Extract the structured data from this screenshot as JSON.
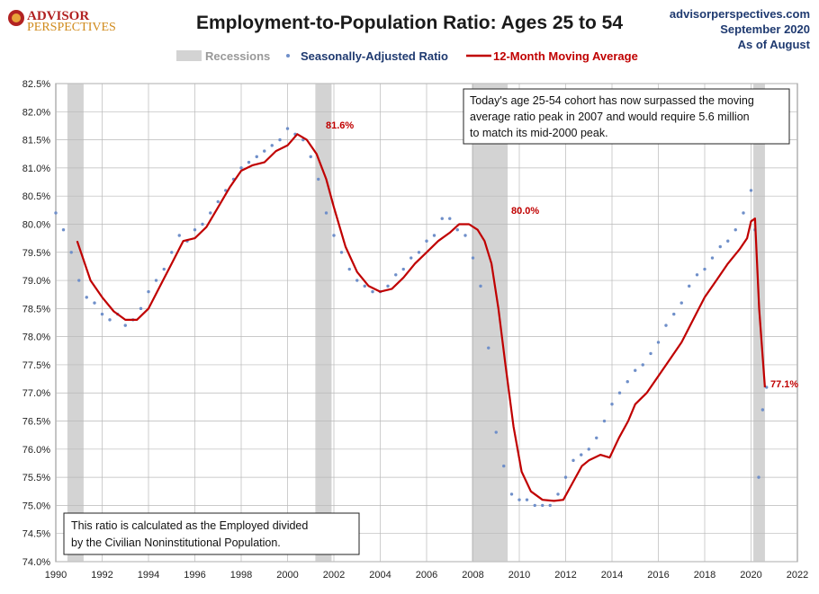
{
  "header": {
    "logo_top": "ADVISOR",
    "logo_bottom": "PERSPECTIVES",
    "site": "advisorperspectives.com",
    "date": "September 2020",
    "asof": "As of August"
  },
  "colors": {
    "dots": "#6f8fc9",
    "line": "#c00000",
    "recession": "#d3d3d3",
    "grid": "#b9b9b9"
  },
  "chart_data": {
    "type": "line",
    "title": "Employment-to-Population Ratio: Ages 25 to 54",
    "xlabel": "",
    "ylabel": "",
    "xlim": [
      1990,
      2022
    ],
    "ylim": [
      74.0,
      82.5
    ],
    "grid": true,
    "legend_position": "top-center",
    "x_ticks": [
      "1990",
      "1992",
      "1994",
      "1996",
      "1998",
      "2000",
      "2002",
      "2004",
      "2006",
      "2008",
      "2010",
      "2012",
      "2014",
      "2016",
      "2018",
      "2020",
      "2022"
    ],
    "y_ticks": [
      "74.0%",
      "74.5%",
      "75.0%",
      "75.5%",
      "76.0%",
      "76.5%",
      "77.0%",
      "77.5%",
      "78.0%",
      "78.5%",
      "79.0%",
      "79.5%",
      "80.0%",
      "80.5%",
      "81.0%",
      "81.5%",
      "82.0%",
      "82.5%"
    ],
    "recessions": [
      [
        1990.5,
        1991.2
      ],
      [
        2001.2,
        2001.9
      ],
      [
        2007.95,
        2009.5
      ],
      [
        2020.1,
        2020.6
      ]
    ],
    "legend": {
      "recessions": "Recessions",
      "ratio": "Seasonally-Adjusted Ratio",
      "average": "12-Month Moving Average"
    },
    "annotations": {
      "box_top": [
        "Today's age 25-54  cohort has now surpassed the moving",
        "average ratio peak in 2007  and would require 5.6 million",
        "to match its mid-2000 peak."
      ],
      "box_bottom": [
        "This ratio is calculated as the Employed divided",
        "by the Civilian Noninstitutional Population."
      ],
      "label_2000": "81.6%",
      "label_2007": "80.0%",
      "label_2020": "77.1%"
    },
    "series": [
      {
        "name": "Seasonally-Adjusted Ratio",
        "x": [
          1990.0,
          1990.33,
          1990.67,
          1991.0,
          1991.33,
          1991.67,
          1992.0,
          1992.33,
          1992.67,
          1993.0,
          1993.33,
          1993.67,
          1994.0,
          1994.33,
          1994.67,
          1995.0,
          1995.33,
          1995.67,
          1996.0,
          1996.33,
          1996.67,
          1997.0,
          1997.33,
          1997.67,
          1998.0,
          1998.33,
          1998.67,
          1999.0,
          1999.33,
          1999.67,
          2000.0,
          2000.33,
          2000.67,
          2001.0,
          2001.33,
          2001.67,
          2002.0,
          2002.33,
          2002.67,
          2003.0,
          2003.33,
          2003.67,
          2004.0,
          2004.33,
          2004.67,
          2005.0,
          2005.33,
          2005.67,
          2006.0,
          2006.33,
          2006.67,
          2007.0,
          2007.33,
          2007.67,
          2008.0,
          2008.33,
          2008.67,
          2009.0,
          2009.33,
          2009.67,
          2010.0,
          2010.33,
          2010.67,
          2011.0,
          2011.33,
          2011.67,
          2012.0,
          2012.33,
          2012.67,
          2013.0,
          2013.33,
          2013.67,
          2014.0,
          2014.33,
          2014.67,
          2015.0,
          2015.33,
          2015.67,
          2016.0,
          2016.33,
          2016.67,
          2017.0,
          2017.33,
          2017.67,
          2018.0,
          2018.33,
          2018.67,
          2019.0,
          2019.33,
          2019.67,
          2020.0,
          2020.17,
          2020.33,
          2020.5,
          2020.67
        ],
        "values": [
          80.2,
          79.9,
          79.5,
          79.0,
          78.7,
          78.6,
          78.4,
          78.3,
          78.4,
          78.2,
          78.3,
          78.5,
          78.8,
          79.0,
          79.2,
          79.5,
          79.8,
          79.7,
          79.9,
          80.0,
          80.2,
          80.4,
          80.6,
          80.8,
          81.0,
          81.1,
          81.2,
          81.3,
          81.4,
          81.5,
          81.7,
          81.6,
          81.5,
          81.2,
          80.8,
          80.2,
          79.8,
          79.5,
          79.2,
          79.0,
          78.9,
          78.8,
          78.8,
          78.9,
          79.1,
          79.2,
          79.4,
          79.5,
          79.7,
          79.8,
          80.1,
          80.1,
          79.9,
          79.8,
          79.4,
          78.9,
          77.8,
          76.3,
          75.7,
          75.2,
          75.1,
          75.1,
          75.0,
          75.0,
          75.0,
          75.2,
          75.5,
          75.8,
          75.9,
          76.0,
          76.2,
          76.5,
          76.8,
          77.0,
          77.2,
          77.4,
          77.5,
          77.7,
          77.9,
          78.2,
          78.4,
          78.6,
          78.9,
          79.1,
          79.2,
          79.4,
          79.6,
          79.7,
          79.9,
          80.2,
          80.6,
          79.9,
          75.5,
          76.7,
          77.1
        ]
      },
      {
        "name": "12-Month Moving Average",
        "x": [
          1990.92,
          1991.5,
          1992.0,
          1992.5,
          1993.0,
          1993.5,
          1994.0,
          1994.5,
          1995.0,
          1995.5,
          1996.0,
          1996.5,
          1997.0,
          1997.5,
          1998.0,
          1998.5,
          1999.0,
          1999.5,
          2000.0,
          2000.42,
          2000.83,
          2001.25,
          2001.67,
          2002.0,
          2002.5,
          2003.0,
          2003.5,
          2004.0,
          2004.5,
          2005.0,
          2005.5,
          2006.0,
          2006.5,
          2007.0,
          2007.4,
          2007.83,
          2008.2,
          2008.5,
          2008.8,
          2009.1,
          2009.4,
          2009.75,
          2010.1,
          2010.5,
          2011.0,
          2011.5,
          2011.9,
          2012.3,
          2012.7,
          2013.0,
          2013.5,
          2013.9,
          2014.3,
          2014.7,
          2015.0,
          2015.5,
          2016.0,
          2016.5,
          2017.0,
          2017.5,
          2018.0,
          2018.5,
          2019.0,
          2019.5,
          2019.83,
          2020.0,
          2020.17,
          2020.35,
          2020.6
        ],
        "values": [
          79.7,
          79.0,
          78.7,
          78.45,
          78.3,
          78.3,
          78.5,
          78.9,
          79.3,
          79.7,
          79.75,
          79.95,
          80.3,
          80.65,
          80.95,
          81.05,
          81.1,
          81.3,
          81.4,
          81.6,
          81.5,
          81.25,
          80.8,
          80.3,
          79.6,
          79.15,
          78.9,
          78.8,
          78.85,
          79.05,
          79.3,
          79.5,
          79.7,
          79.85,
          80.0,
          80.0,
          79.9,
          79.7,
          79.3,
          78.5,
          77.5,
          76.4,
          75.6,
          75.25,
          75.1,
          75.08,
          75.1,
          75.4,
          75.7,
          75.8,
          75.9,
          75.85,
          76.2,
          76.5,
          76.8,
          77.0,
          77.3,
          77.6,
          77.9,
          78.3,
          78.7,
          79.0,
          79.3,
          79.55,
          79.75,
          80.05,
          80.1,
          78.5,
          77.1
        ]
      }
    ]
  }
}
